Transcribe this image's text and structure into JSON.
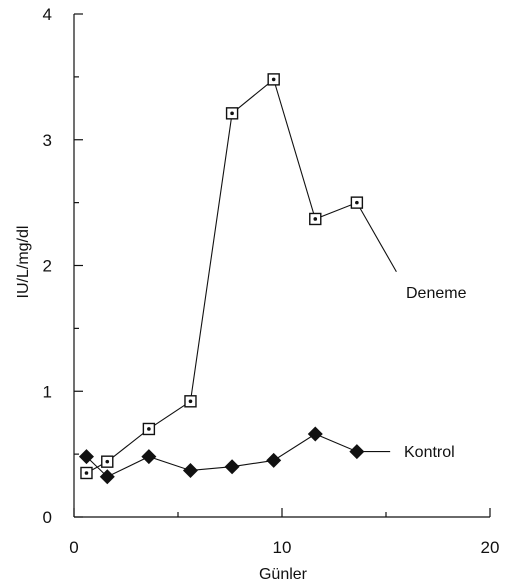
{
  "chart_data": {
    "type": "line",
    "xlabel": "Günler",
    "ylabel": "IU/L/mg/dl",
    "xlim": [
      0,
      20
    ],
    "ylim": [
      0,
      4
    ],
    "x_ticks": [
      0,
      10,
      20
    ],
    "x_minor_ticks": [
      5,
      15
    ],
    "y_ticks": [
      0,
      1,
      2,
      3,
      4
    ],
    "y_minor_ticks": [
      0.5,
      1.5,
      2.5,
      3.5
    ],
    "grid": false,
    "series": [
      {
        "name": "Deneme",
        "marker": "open-square-with-dot",
        "color": "#111111",
        "x": [
          0.6,
          1.6,
          3.6,
          5.6,
          7.6,
          9.6,
          11.6,
          13.6
        ],
        "y": [
          0.35,
          0.44,
          0.7,
          0.92,
          3.21,
          3.48,
          2.37,
          2.5
        ],
        "tail_x": 15.5,
        "tail_y": 1.95
      },
      {
        "name": "Kontrol",
        "marker": "filled-diamond",
        "color": "#111111",
        "x": [
          0.6,
          1.6,
          3.6,
          5.6,
          7.6,
          9.6,
          11.6,
          13.6
        ],
        "y": [
          0.48,
          0.32,
          0.48,
          0.37,
          0.4,
          0.45,
          0.66,
          0.52
        ],
        "tail_x": 15.2,
        "tail_y": 0.52
      }
    ]
  }
}
